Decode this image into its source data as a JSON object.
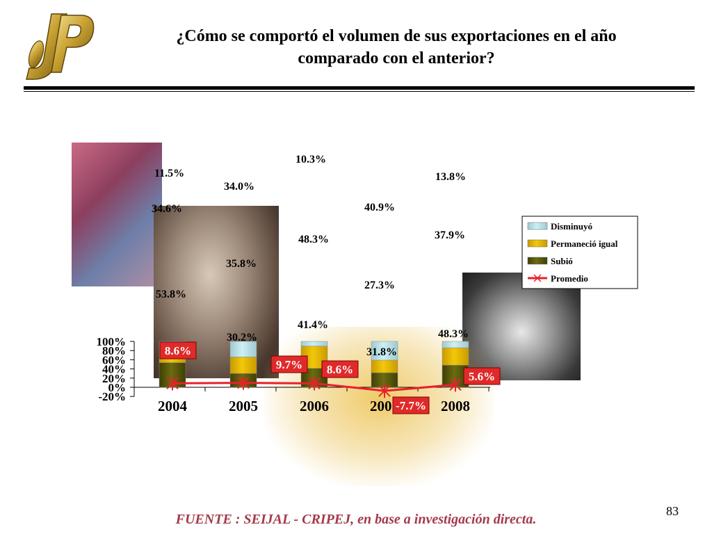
{
  "slide": {
    "title_line1": "¿Cómo se comportó el volumen de sus exportaciones en el año",
    "title_line2": "comparado con el anterior?",
    "source": "FUENTE :  SEIJAL - CRIPEJ,  en base a investigación directa.",
    "page_number": "83"
  },
  "colors": {
    "subio": "#6b6b10",
    "permanecio": "#f2c80a",
    "disminuyo": "#cdeff5",
    "promedio": "#e8202a",
    "label_box": "#e02a2a"
  },
  "chart_data": {
    "type": "bar",
    "stacked": true,
    "categories": [
      "2004",
      "2005",
      "2006",
      "2007",
      "2008"
    ],
    "series": [
      {
        "name": "Subió",
        "values": [
          53.8,
          30.2,
          41.4,
          31.8,
          48.3
        ],
        "labels": [
          "53.8%",
          "30.2%",
          "41.4%",
          "31.8%",
          "48.3%"
        ]
      },
      {
        "name": "Permaneció igual",
        "values": [
          34.6,
          35.8,
          48.3,
          27.3,
          37.9
        ],
        "labels": [
          "34.6%",
          "35.8%",
          "48.3%",
          "27.3%",
          "37.9%"
        ]
      },
      {
        "name": "Disminuyó",
        "values": [
          11.5,
          34.0,
          10.3,
          40.9,
          13.8
        ],
        "labels": [
          "11.5%",
          "34.0%",
          "10.3%",
          "40.9%",
          "13.8%"
        ]
      }
    ],
    "line_series": {
      "name": "Promedio",
      "values": [
        8.6,
        9.7,
        8.6,
        -7.7,
        5.6
      ],
      "labels": [
        "8.6%",
        "9.7%",
        "8.6%",
        "-7.7%",
        "5.6%"
      ]
    },
    "legend": [
      "Disminuyó",
      "Permaneció igual",
      "Subió",
      "Promedio"
    ],
    "legend_position": "right",
    "ylim": [
      -20,
      100
    ],
    "yticks": [
      -20,
      0,
      20,
      40,
      60,
      80,
      100
    ],
    "ytick_labels": [
      "-20%",
      "0%",
      "20%",
      "40%",
      "60%",
      "80%",
      "100%"
    ],
    "title": "",
    "xlabel": "",
    "ylabel": ""
  }
}
